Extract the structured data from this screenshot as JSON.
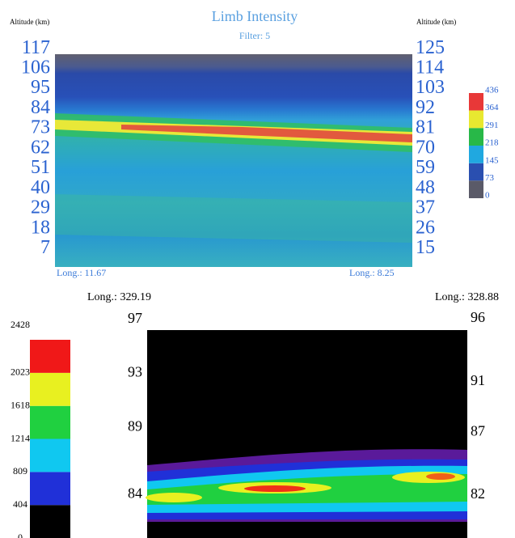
{
  "chart_data": [
    {
      "type": "heatmap",
      "title": "Limb Intensity",
      "subtitle": "Filter: 5",
      "y_label": "Altitude (km)",
      "y2_label": "Altitude (km)",
      "x_start_label": "Long.: 11.67",
      "x_end_label": "Long.: 8.25",
      "ylim": [
        -3,
        114
      ],
      "yticks": [
        117,
        106,
        95,
        84,
        73,
        62,
        51,
        40,
        29,
        18,
        7
      ],
      "y2lim": [
        5,
        122
      ],
      "y2ticks": [
        125,
        114,
        103,
        92,
        81,
        70,
        59,
        48,
        37,
        26,
        15
      ],
      "colorbar": {
        "clim": [
          0,
          436
        ],
        "ticks": [
          0,
          73,
          145,
          218,
          291,
          364,
          436
        ],
        "colors": [
          "#5a5a68",
          "#2a4fb0",
          "#20a8e0",
          "#28b848",
          "#e8e830",
          "#e83838"
        ]
      }
    },
    {
      "type": "heatmap",
      "x_start_label": "Long.: 329.19",
      "x_end_label": "Long.: 328.88",
      "ylim": [
        80.8,
        96.2
      ],
      "yticks": [
        97,
        93,
        89,
        84
      ],
      "y2lim": [
        78.6,
        95.1
      ],
      "y2ticks": [
        96,
        91,
        87,
        82
      ],
      "colorbar": {
        "clim": [
          0,
          2428
        ],
        "ticks": [
          0,
          404,
          809,
          1214,
          1618,
          2023,
          2428
        ],
        "colors": [
          "#000000",
          "#2030d8",
          "#10c8f0",
          "#20d040",
          "#e8f020",
          "#f01818"
        ]
      }
    }
  ]
}
